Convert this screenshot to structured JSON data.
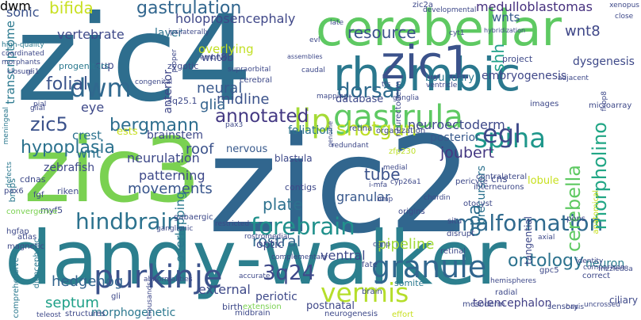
{
  "words": [
    {
      "text": "zic2",
      "color": "#31668e"
    },
    {
      "text": "zic3",
      "color": "#7ad151"
    },
    {
      "text": "dandy-walker",
      "color": "#2c7f8e"
    },
    {
      "text": "zic4",
      "color": "#2e6e8e"
    },
    {
      "text": "cerebellar",
      "color": "#5ec962"
    },
    {
      "text": "rhombic",
      "color": "#2a788e"
    },
    {
      "text": "zic1",
      "color": "#3b528b"
    },
    {
      "text": "gastrula",
      "color": "#5ec962"
    },
    {
      "text": "granule",
      "color": "#31668e"
    },
    {
      "text": "lip",
      "color": "#a5db36"
    },
    {
      "text": "purkinje",
      "color": "#3b528b"
    },
    {
      "text": "vermis",
      "color": "#b5de2b"
    },
    {
      "text": "forebrain",
      "color": "#21918c"
    },
    {
      "text": "hindbrain",
      "color": "#2c728e"
    },
    {
      "text": "malformation",
      "color": "#306a8e"
    },
    {
      "text": "spina",
      "color": "#1f978b"
    },
    {
      "text": "3q24",
      "color": "#3e4989"
    },
    {
      "text": "dorsal",
      "color": "#2f6b8e"
    },
    {
      "text": "dwm",
      "color": "#30688e"
    },
    {
      "text": "resource",
      "color": "#3b518b"
    },
    {
      "text": "gastrulation",
      "color": "#31668e"
    },
    {
      "text": "shotgun",
      "color": "#bddf26"
    },
    {
      "text": "annotated",
      "color": "#443983"
    },
    {
      "text": "bergmann",
      "color": "#2e6e8e"
    },
    {
      "text": "egl",
      "color": "#3e4a89"
    },
    {
      "text": "folial",
      "color": "#3a538b"
    },
    {
      "text": "ontology",
      "color": "#2c728e"
    },
    {
      "text": "cerebella",
      "color": "#5ec962"
    },
    {
      "text": "morpholino",
      "color": "#21a685"
    },
    {
      "text": "zic5",
      "color": "#3b528b"
    },
    {
      "text": "hypoplasia",
      "color": "#2c728e"
    },
    {
      "text": "neurulation",
      "color": "#3e4989"
    },
    {
      "text": "bifida",
      "color": "#c8e020"
    },
    {
      "text": "midline",
      "color": "#3b528b"
    },
    {
      "text": "glia",
      "color": "#33638d"
    },
    {
      "text": "neural",
      "color": "#38588c"
    },
    {
      "text": "wnt8",
      "color": "#3f4788"
    },
    {
      "text": "pipeline",
      "color": "#a2da37"
    },
    {
      "text": "movements",
      "color": "#39568c"
    },
    {
      "text": "septum",
      "color": "#1fa088"
    },
    {
      "text": "hedgehog",
      "color": "#32648e"
    },
    {
      "text": "neuroectoderm",
      "color": "#3e4989"
    },
    {
      "text": "tube",
      "color": "#3b528b"
    },
    {
      "text": "joubert",
      "color": "#453882"
    },
    {
      "text": "plate",
      "color": "#2d718e"
    },
    {
      "text": "granular",
      "color": "#38588c"
    },
    {
      "text": "rostral",
      "color": "#31688e"
    },
    {
      "text": "external",
      "color": "#3e4989"
    },
    {
      "text": "ventral",
      "color": "#3e4989"
    },
    {
      "text": "roof",
      "color": "#3b528b"
    },
    {
      "text": "patterning",
      "color": "#3e4989"
    },
    {
      "text": "morphogenetic",
      "color": "#2a778e"
    },
    {
      "text": "sonic",
      "color": "#3b528b"
    },
    {
      "text": "vertebrate",
      "color": "#3e4989"
    },
    {
      "text": "holoprosencephaly",
      "color": "#3f4788"
    },
    {
      "text": "medulloblastomas",
      "color": "#46307e"
    },
    {
      "text": "wnts",
      "color": "#375a8c"
    },
    {
      "text": "shh",
      "color": "#1fa088"
    },
    {
      "text": "anterior",
      "color": "#3f4788"
    },
    {
      "text": "foliation",
      "color": "#2c738e"
    },
    {
      "text": "posterior",
      "color": "#38598c"
    },
    {
      "text": "crest",
      "color": "#2c728e"
    },
    {
      "text": "brainstem",
      "color": "#3e4989"
    },
    {
      "text": "overlying",
      "color": "#c2df23"
    },
    {
      "text": "wnt",
      "color": "#2c728e"
    },
    {
      "text": "zebrafish",
      "color": "#3f4889"
    },
    {
      "text": "opa",
      "color": "#2e6d8e"
    },
    {
      "text": "optic",
      "color": "#3e4989"
    },
    {
      "text": "nervous",
      "color": "#38598c"
    },
    {
      "text": "overlapping",
      "color": "#2a788e"
    },
    {
      "text": "periotic",
      "color": "#3e4989"
    },
    {
      "text": "postnatal",
      "color": "#3f4788"
    },
    {
      "text": "telencephalon",
      "color": "#424086"
    },
    {
      "text": "ciliary",
      "color": "#3e4989"
    },
    {
      "text": "precursors",
      "color": "#2c728e"
    },
    {
      "text": "cns",
      "color": "#3e4989"
    },
    {
      "text": "tangential",
      "color": "#3e4989"
    },
    {
      "text": "neuron",
      "color": "#287d8e"
    },
    {
      "text": "dysgenesis",
      "color": "#3e4989"
    },
    {
      "text": "embryogenesis",
      "color": "#3f4788"
    },
    {
      "text": "boundary",
      "color": "#2a778e"
    },
    {
      "text": "layer",
      "color": "#2c728e"
    },
    {
      "text": "zygotic",
      "color": "#3e4989"
    },
    {
      "text": "cup",
      "color": "#3e4989"
    },
    {
      "text": "progenitors",
      "color": "#2a788e"
    },
    {
      "text": "transcriptome",
      "color": "#2a788e"
    },
    {
      "text": "wnt8b",
      "color": "#3e4989"
    },
    {
      "text": "project",
      "color": "#3e4989"
    },
    {
      "text": "blastula",
      "color": "#3e4989"
    },
    {
      "text": "contigs",
      "color": "#3e4989"
    },
    {
      "text": "zfp230",
      "color": "#bddf26"
    },
    {
      "text": "database",
      "color": "#3e4989"
    },
    {
      "text": "3q25.1",
      "color": "#3e4989"
    },
    {
      "text": "lobule",
      "color": "#c8e020"
    },
    {
      "text": "ests",
      "color": "#c8e020"
    },
    {
      "text": "cdnas",
      "color": "#3e4989"
    },
    {
      "text": "riken",
      "color": "#3e4989"
    },
    {
      "text": "myf5",
      "color": "#3e4989"
    },
    {
      "text": "somite",
      "color": "#2a788e"
    },
    {
      "text": "fate",
      "color": "#3e4989"
    },
    {
      "text": "gpc5",
      "color": "#3e4989"
    },
    {
      "text": "correct",
      "color": "#3e4989"
    },
    {
      "text": "identity",
      "color": "#3e4989"
    },
    {
      "text": "comparison",
      "color": "#3e4989"
    },
    {
      "text": "frizzled8a",
      "color": "#3e4989"
    },
    {
      "text": "sensory",
      "color": "#3e4989"
    },
    {
      "text": "mesoderm",
      "color": "#3e4989"
    },
    {
      "text": "neurogenesis",
      "color": "#3e4989"
    },
    {
      "text": "effort",
      "color": "#c8e020"
    },
    {
      "text": "brain",
      "color": "#3e4989"
    },
    {
      "text": "birth",
      "color": "#3e4989"
    },
    {
      "text": "teleost",
      "color": "#3e4989"
    },
    {
      "text": "comprehensive",
      "color": "#2a788e"
    },
    {
      "text": "atlas",
      "color": "#3e4989"
    },
    {
      "text": "hgfap",
      "color": "#3e4989"
    },
    {
      "text": "magnetic",
      "color": "#3e4989"
    },
    {
      "text": "convergence",
      "color": "#7ad151"
    },
    {
      "text": "bmps",
      "color": "#2a788e"
    },
    {
      "text": "pax6",
      "color": "#3e4989"
    },
    {
      "text": "fgf",
      "color": "#3e4989"
    },
    {
      "text": "defects",
      "color": "#2a788e"
    },
    {
      "text": "diencephalic",
      "color": "#2a788e"
    },
    {
      "text": "gli",
      "color": "#3e4989"
    },
    {
      "text": "structures",
      "color": "#3e4989"
    },
    {
      "text": "thousands",
      "color": "#3e4989"
    },
    {
      "text": "abnormalities",
      "color": "#3e4989"
    },
    {
      "text": "extension",
      "color": "#7ad151"
    },
    {
      "text": "midbrain",
      "color": "#3e4989"
    },
    {
      "text": "accurate",
      "color": "#3e4989"
    },
    {
      "text": "complementary",
      "color": "#3e4989"
    },
    {
      "text": "restricted",
      "color": "#3e4989"
    },
    {
      "text": "rostromedial",
      "color": "#3e4989"
    },
    {
      "text": "retinal",
      "color": "#3e4989"
    },
    {
      "text": "hemispheres",
      "color": "#3e4989"
    },
    {
      "text": "axial",
      "color": "#3e4989"
    },
    {
      "text": "disrupt",
      "color": "#3e4989"
    },
    {
      "text": "situ",
      "color": "#3e4989"
    },
    {
      "text": "pons",
      "color": "#3e4989"
    },
    {
      "text": "otocyst",
      "color": "#3e4989"
    },
    {
      "text": "interneurons",
      "color": "#3e4989"
    },
    {
      "text": "contralateral",
      "color": "#3e4989"
    },
    {
      "text": "pericyte",
      "color": "#3e4989"
    },
    {
      "text": "medial",
      "color": "#3e4989"
    },
    {
      "text": "i-mfa",
      "color": "#3e4989"
    },
    {
      "text": "bmp",
      "color": "#3e4989"
    },
    {
      "text": "chordin",
      "color": "#3e4989"
    },
    {
      "text": "ganglionic",
      "color": "#3e4989"
    },
    {
      "text": "gabaergic",
      "color": "#3e4989"
    },
    {
      "text": "anatomical",
      "color": "#c8e020"
    },
    {
      "text": "microarray",
      "color": "#3e4989"
    },
    {
      "text": "images",
      "color": "#3e4989"
    },
    {
      "text": "congenital",
      "color": "#3e4989"
    },
    {
      "text": "cerebral",
      "color": "#3e4989"
    },
    {
      "text": "supraorbital",
      "color": "#3e4989"
    },
    {
      "text": "pax3",
      "color": "#3e4989"
    },
    {
      "text": "mapping",
      "color": "#3e4989"
    },
    {
      "text": "pial",
      "color": "#3e4989"
    },
    {
      "text": "glial",
      "color": "#3e4989"
    },
    {
      "text": "meningeal",
      "color": "#2a788e"
    },
    {
      "text": "high-quality",
      "color": "#2a788e"
    },
    {
      "text": "coordinated",
      "color": "#3e4989"
    },
    {
      "text": "morphants",
      "color": "#3e4989"
    },
    {
      "text": "closure",
      "color": "#3e4989"
    },
    {
      "text": "gli1",
      "color": "#3e4989"
    },
    {
      "text": "ipsilaterally",
      "color": "#3e4989"
    },
    {
      "text": "proper",
      "color": "#3e4989"
    },
    {
      "text": "embryo",
      "color": "#3e4989"
    },
    {
      "text": "assemblies",
      "color": "#3e4989"
    },
    {
      "text": "evl",
      "color": "#3e4989"
    },
    {
      "text": "tfs",
      "color": "#3e4989"
    },
    {
      "text": "ventricle",
      "color": "#3e4989"
    },
    {
      "text": "caudal",
      "color": "#3e4989"
    },
    {
      "text": "late",
      "color": "#3e4989"
    },
    {
      "text": "developmental",
      "color": "#3e4989"
    },
    {
      "text": "hybridization",
      "color": "#3e4989"
    },
    {
      "text": "xenopus",
      "color": "#3e4989"
    },
    {
      "text": "close",
      "color": "#3e4989"
    },
    {
      "text": "adjacent",
      "color": "#3e4989"
    },
    {
      "text": "fkbp8",
      "color": "#3e4989"
    },
    {
      "text": "ganglia",
      "color": "#3e4989"
    },
    {
      "text": "organization",
      "color": "#3e4989"
    },
    {
      "text": "redundant",
      "color": "#3e4989"
    },
    {
      "text": "origins",
      "color": "#3e4989"
    },
    {
      "text": "cyp26a1",
      "color": "#3e4989"
    },
    {
      "text": "neurectoderm",
      "color": "#3e4989"
    },
    {
      "text": "genome",
      "color": "#3e4989"
    },
    {
      "text": "basis",
      "color": "#3e4989"
    },
    {
      "text": "uncrossed",
      "color": "#3e4989"
    },
    {
      "text": "radial",
      "color": "#3e4989"
    },
    {
      "text": "cgnp",
      "color": "#3e4989"
    },
    {
      "text": "zic2a",
      "color": "#3e4989"
    },
    {
      "text": "cyt1",
      "color": "#3e4989"
    },
    {
      "text": "retina",
      "color": "#3e4989"
    },
    {
      "text": "eye",
      "color": "#3e4989"
    },
    {
      "text": "dwm",
      "color": "#3e4989"
    }
  ]
}
